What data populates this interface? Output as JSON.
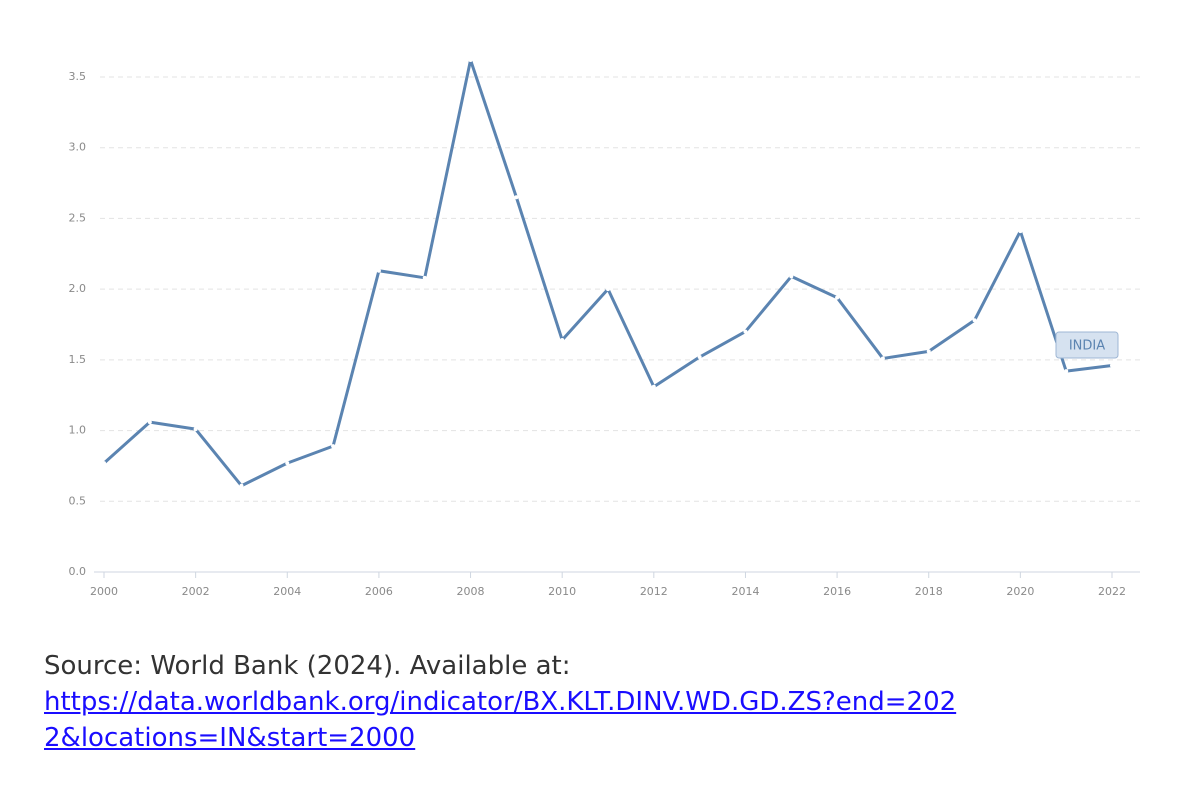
{
  "chart_data": {
    "type": "line",
    "x": [
      2000,
      2001,
      2002,
      2003,
      2004,
      2005,
      2006,
      2007,
      2008,
      2009,
      2010,
      2011,
      2012,
      2013,
      2014,
      2015,
      2016,
      2017,
      2018,
      2019,
      2020,
      2021,
      2022
    ],
    "series": [
      {
        "name": "INDIA",
        "color": "#5b84b1",
        "values": [
          0.77,
          1.06,
          1.01,
          0.61,
          0.77,
          0.89,
          2.13,
          2.08,
          3.62,
          2.65,
          1.64,
          2.0,
          1.31,
          1.52,
          1.7,
          2.09,
          1.94,
          1.51,
          1.56,
          1.78,
          2.41,
          1.42,
          1.46
        ]
      }
    ],
    "xlim": [
      2000,
      2022
    ],
    "xticks": [
      2000,
      2002,
      2004,
      2006,
      2008,
      2010,
      2012,
      2014,
      2016,
      2018,
      2020,
      2022
    ],
    "ylim": [
      0,
      3.5
    ],
    "yticks": [
      {
        "value": 0,
        "label": "0.0"
      },
      0.5,
      {
        "value": 1,
        "label": "1.0"
      },
      1.5,
      {
        "value": 2,
        "label": "2.0"
      },
      2.5,
      {
        "value": 3,
        "label": "3.0"
      },
      3.5
    ],
    "grid": true
  },
  "source": {
    "text": "Source: World Bank (2024). Available at:",
    "link": "https://data.worldbank.org/indicator/BX.KLT.DINV.WD.GD.ZS?end=2022&locations=IN&start=2000"
  }
}
